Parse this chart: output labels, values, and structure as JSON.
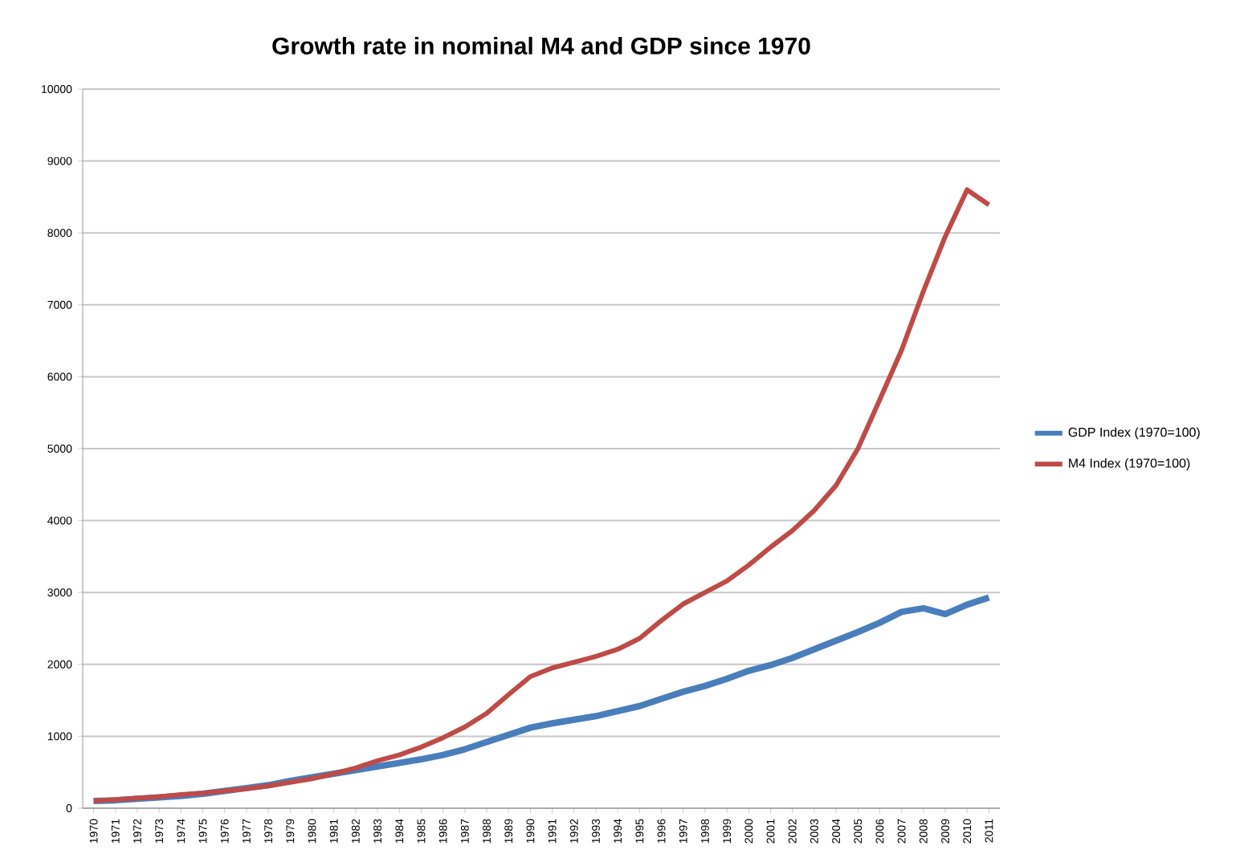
{
  "chart_data": {
    "type": "line",
    "title": "Growth rate in nominal M4 and GDP since 1970",
    "categories": [
      "1970",
      "1971",
      "1972",
      "1973",
      "1974",
      "1975",
      "1976",
      "1977",
      "1978",
      "1979",
      "1980",
      "1981",
      "1982",
      "1983",
      "1984",
      "1985",
      "1986",
      "1987",
      "1988",
      "1989",
      "1990",
      "1991",
      "1992",
      "1993",
      "1994",
      "1995",
      "1996",
      "1997",
      "1998",
      "1999",
      "2000",
      "2001",
      "2002",
      "2003",
      "2004",
      "2005",
      "2006",
      "2007",
      "2008",
      "2009",
      "2010",
      "2011"
    ],
    "series": [
      {
        "name": "GDP Index (1970=100)",
        "color": "#4a7ebb",
        "values": [
          100,
          110,
          130,
          150,
          170,
          200,
          240,
          280,
          320,
          380,
          430,
          480,
          530,
          580,
          630,
          680,
          740,
          820,
          920,
          1020,
          1120,
          1180,
          1230,
          1280,
          1350,
          1420,
          1520,
          1620,
          1700,
          1800,
          1910,
          1990,
          2090,
          2210,
          2330,
          2450,
          2580,
          2730,
          2780,
          2700,
          2830,
          2930
        ]
      },
      {
        "name": "M4 Index (1970=100)",
        "color": "#be4b48",
        "values": [
          100,
          120,
          140,
          160,
          190,
          210,
          240,
          270,
          310,
          360,
          410,
          480,
          560,
          660,
          740,
          850,
          980,
          1130,
          1320,
          1580,
          1830,
          1950,
          2030,
          2110,
          2210,
          2360,
          2610,
          2840,
          3000,
          3160,
          3380,
          3630,
          3860,
          4140,
          4490,
          5000,
          5680,
          6370,
          7190,
          7950,
          8600,
          8390
        ]
      }
    ],
    "ylim": [
      0,
      10000
    ],
    "yticks": [
      0,
      1000,
      2000,
      3000,
      4000,
      5000,
      6000,
      7000,
      8000,
      9000,
      10000
    ],
    "grid": "y",
    "legend": "right",
    "marker": "none",
    "line_style": "solid"
  }
}
